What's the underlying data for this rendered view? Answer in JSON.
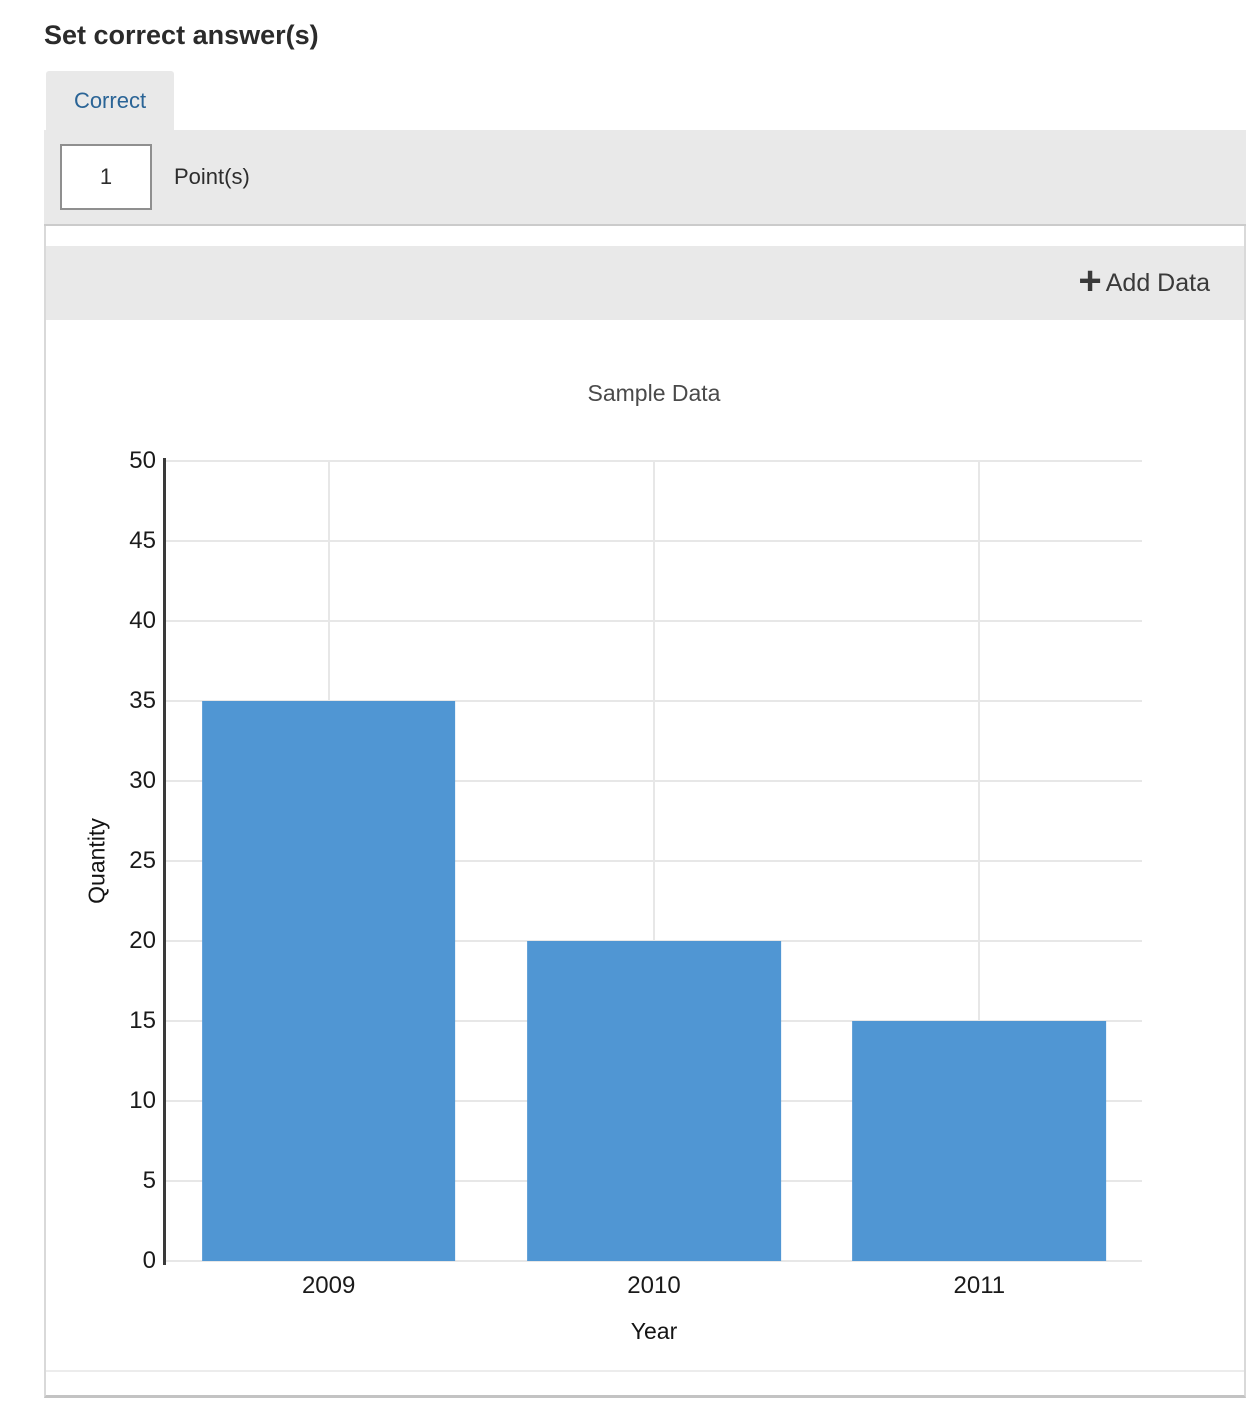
{
  "heading": "Set correct answer(s)",
  "tab": {
    "label": "Correct"
  },
  "points": {
    "value": "1",
    "label": "Point(s)"
  },
  "toolbar": {
    "plus_icon": "+",
    "add_data_label": "Add Data"
  },
  "chart_data": {
    "type": "bar",
    "title": "Sample Data",
    "categories": [
      "2009",
      "2010",
      "2011"
    ],
    "values": [
      35,
      20,
      15
    ],
    "xlabel": "Year",
    "ylabel": "Quantity",
    "ylim": [
      0,
      50
    ],
    "ytick_step": 5,
    "grid": true,
    "legend": "none",
    "bar_color": "#5096d3"
  },
  "colors": {
    "accent_blue": "#2a6496",
    "bar": "#5096d3",
    "panel_gray": "#e9e9e9",
    "gridline": "#e7e7e7",
    "axis": "#3a3a3a"
  }
}
